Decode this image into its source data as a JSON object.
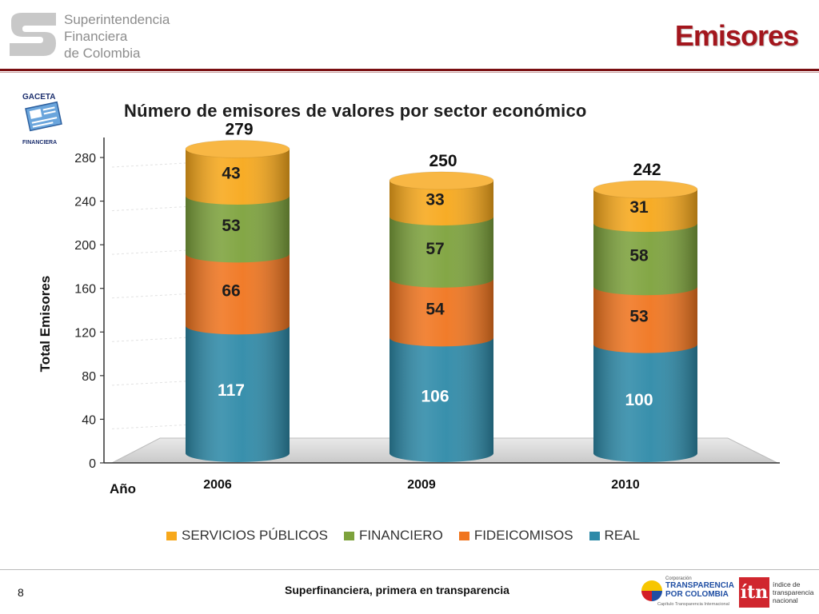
{
  "header": {
    "org_lines": [
      "Superintendencia",
      "Financiera",
      "de Colombia"
    ],
    "slide_title": "Emisores"
  },
  "badge": {
    "line1": "GACETA",
    "line2": "FINANCIERA"
  },
  "chart_data": {
    "type": "bar",
    "stacked": true,
    "style": "3d-cylinder",
    "title": "Número de emisores de valores por sector económico",
    "xlabel": "Año",
    "ylabel": "Total Emisores",
    "categories": [
      "2006",
      "2009",
      "2010"
    ],
    "ylim": [
      0,
      280
    ],
    "yticks": [
      0,
      40,
      80,
      120,
      160,
      200,
      240,
      280
    ],
    "totals": [
      279,
      250,
      242
    ],
    "series": [
      {
        "name": "REAL",
        "values": [
          117,
          106,
          100
        ],
        "color": "#2e8aa8"
      },
      {
        "name": "FIDEICOMISOS",
        "values": [
          66,
          54,
          53
        ],
        "color": "#f0751f"
      },
      {
        "name": "FINANCIERO",
        "values": [
          53,
          57,
          58
        ],
        "color": "#7da23c"
      },
      {
        "name": "SERVICIOS PÚBLICOS",
        "values": [
          43,
          33,
          31
        ],
        "color": "#f7a81b"
      }
    ],
    "legend_order": [
      "SERVICIOS PÚBLICOS",
      "FINANCIERO",
      "FIDEICOMISOS",
      "REAL"
    ],
    "legend_position": "bottom",
    "grid": true
  },
  "footer": {
    "page_number": "8",
    "tagline": "Superfinanciera, primera en transparencia",
    "tpc_small": "Corporación",
    "tpc_name": "TRANSPARENCIA POR COLOMBIA",
    "tpc_sub": "Capítulo Transparencia Internacional",
    "itn_mark": "ítn",
    "itn_lines": [
      "índice de",
      "transparencia",
      "nacional"
    ]
  }
}
